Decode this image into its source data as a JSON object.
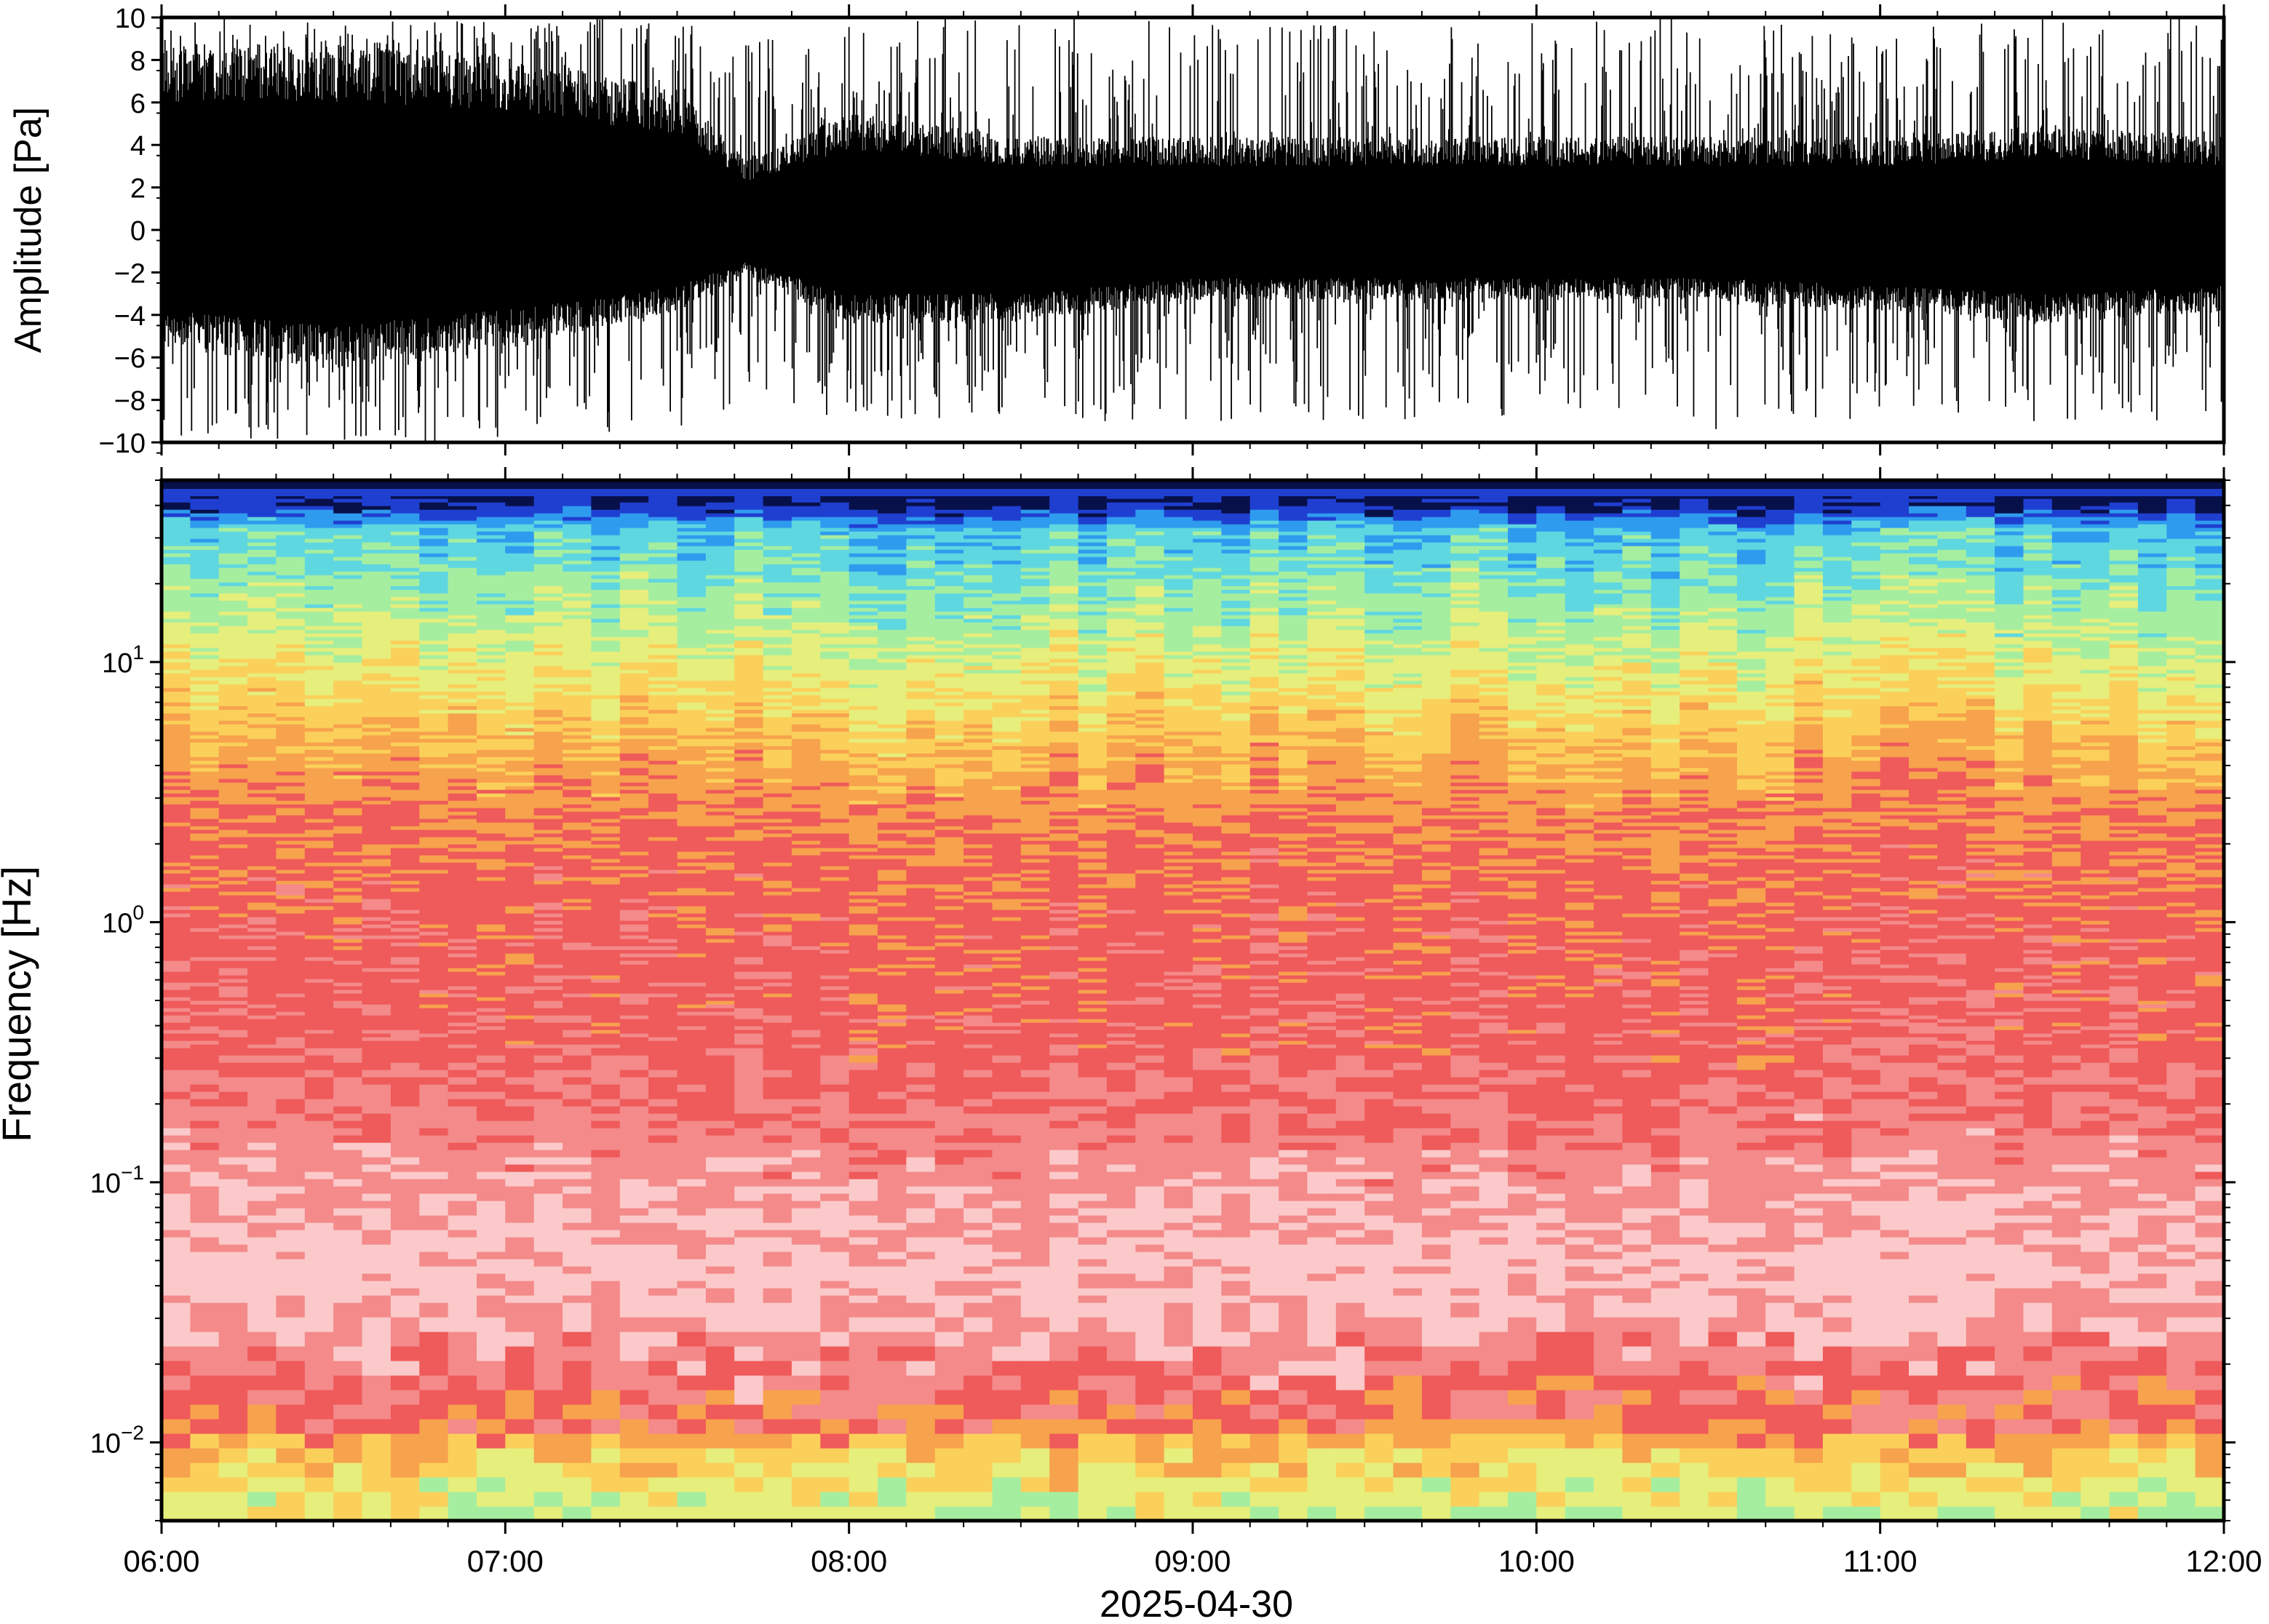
{
  "chart_data": [
    {
      "type": "line",
      "panel": "waveform",
      "ylabel": "Amplitude [Pa]",
      "ylim": [
        -10,
        10
      ],
      "yticks": [
        10,
        8,
        6,
        4,
        2,
        0,
        -2,
        -4,
        -6,
        -8,
        -10
      ],
      "ytick_labels": [
        "10",
        "8",
        "6",
        "4",
        "2",
        "0",
        "−2",
        "−4",
        "−6",
        "−8",
        "−10"
      ],
      "xlim": [
        "2025-04-30 06:00",
        "2025-04-30 12:00"
      ],
      "grid": false,
      "line_color": "#000000",
      "envelope": {
        "hours": [
          6.0,
          6.5,
          7.0,
          7.5,
          7.7,
          8.0,
          8.5,
          9.0,
          9.5,
          10.0,
          10.5,
          11.0,
          11.5,
          12.0
        ],
        "positive_peak": [
          10,
          10,
          10,
          10,
          9,
          10,
          10,
          10,
          10,
          10,
          10,
          9.5,
          10,
          10
        ],
        "negative_peak": [
          -10,
          -10,
          -10,
          -9.5,
          -8,
          -9,
          -9,
          -9,
          -9,
          -9,
          -9.5,
          -9,
          -9,
          -9
        ],
        "typical_upper": [
          8,
          8,
          7.5,
          6,
          3,
          5,
          4,
          4,
          4,
          4,
          4,
          4,
          4.5,
          4
        ],
        "typical_lower": [
          -5,
          -6,
          -5,
          -3.5,
          -2,
          -4,
          -4,
          -3,
          -3,
          -3,
          -3,
          -3.5,
          -4,
          -3.5
        ]
      }
    },
    {
      "type": "heatmap",
      "panel": "spectrogram",
      "ylabel": "Frequency [Hz]",
      "xlabel": "2025-04-30",
      "yscale": "log",
      "ylim": [
        0.005,
        50
      ],
      "yticks": [
        0.01,
        0.1,
        1,
        10
      ],
      "ytick_labels": [
        {
          "base": "10",
          "exp": "−2"
        },
        {
          "base": "10",
          "exp": "−1"
        },
        {
          "base": "10",
          "exp": "0"
        },
        {
          "base": "10",
          "exp": "1"
        }
      ],
      "xticks": [
        "06:00",
        "07:00",
        "08:00",
        "09:00",
        "10:00",
        "11:00",
        "12:00"
      ],
      "xtick_hours": [
        6,
        7,
        8,
        9,
        10,
        11,
        12
      ],
      "colormap": [
        "#08104a",
        "#1f3fd0",
        "#2f9bef",
        "#5fd7e0",
        "#a6ee9f",
        "#e6ee7c",
        "#fbd05a",
        "#f7a24d",
        "#ef5a5a",
        "#f48a8a",
        "#fbc9c9"
      ],
      "profile": {
        "log10_freq": [
          -2.3,
          -2.0,
          -1.9,
          -1.7,
          -1.5,
          -1.3,
          -1.0,
          -0.5,
          0.0,
          0.4,
          0.7,
          1.0,
          1.3,
          1.55,
          1.65
        ],
        "level": [
          4.5,
          6.2,
          8.0,
          8.6,
          9.6,
          9.9,
          9.3,
          8.2,
          8.0,
          7.6,
          6.6,
          5.2,
          3.8,
          2.8,
          0.3
        ]
      }
    }
  ]
}
